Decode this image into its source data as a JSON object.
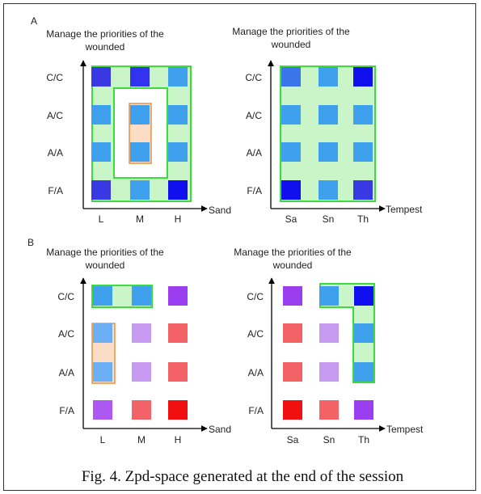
{
  "figure": {
    "caption": "Fig. 4.   Zpd-space generated at the end of the session",
    "section_labels": [
      "A",
      "B"
    ],
    "y_categories": [
      "C/C",
      "A/C",
      "A/A",
      "F/A"
    ],
    "panels": [
      {
        "id": "A-left",
        "title_line1": "Manage the priorities of the",
        "title_line2": "wounded",
        "x_axis_title": "Sand",
        "x_categories": [
          "L",
          "M",
          "H"
        ],
        "cells": [
          [
            "#3939e3",
            "#3333ef",
            "#3fa1ee"
          ],
          [
            "#3fa1ee",
            "#3fa1ee",
            "#3fa1ee"
          ],
          [
            "#3fa1ee",
            "#3fa1ee",
            "#3fa1ee"
          ],
          [
            "#3939e3",
            "#3fa1ee",
            "#1010ee"
          ]
        ]
      },
      {
        "id": "A-right",
        "title_line1": "Manage the priorities of the",
        "title_line2": "wounded",
        "x_axis_title": "Tempest",
        "x_categories": [
          "Sa",
          "Sn",
          "Th"
        ],
        "cells": [
          [
            "#3a76ea",
            "#3fa1ee",
            "#1010ee"
          ],
          [
            "#3fa1ee",
            "#3fa1ee",
            "#3fa1ee"
          ],
          [
            "#3fa1ee",
            "#3fa1ee",
            "#3fa1ee"
          ],
          [
            "#1010ee",
            "#3fa1ee",
            "#3939e3"
          ]
        ]
      },
      {
        "id": "B-left",
        "title_line1": "Manage the priorities of the",
        "title_line2": "wounded",
        "x_axis_title": "Sand",
        "x_categories": [
          "L",
          "M",
          "H"
        ],
        "cells": [
          [
            "#3fa1ee",
            "#3fa1ee",
            "#9b3ef0"
          ],
          [
            "#6aaff3",
            "#c79af2",
            "#f26266"
          ],
          [
            "#6aaff3",
            "#c79af2",
            "#f26266"
          ],
          [
            "#ae58f3",
            "#f26266",
            "#f01010"
          ]
        ]
      },
      {
        "id": "B-right",
        "title_line1": "Manage the priorities of the",
        "title_line2": "wounded",
        "x_axis_title": "Tempest",
        "x_categories": [
          "Sa",
          "Sn",
          "Th"
        ],
        "cells": [
          [
            "#9b3ef0",
            "#3fa1ee",
            "#1010ee"
          ],
          [
            "#f26266",
            "#c79af2",
            "#3fa1ee"
          ],
          [
            "#f26266",
            "#c79af2",
            "#3fa1ee"
          ],
          [
            "#f01010",
            "#f26266",
            "#9b3ef0"
          ]
        ]
      }
    ],
    "colors": {
      "zone_fill": "#c9f5c9",
      "zone_stroke": "#3ddc3d",
      "highlight_fill": "#fbdcc4",
      "highlight_stroke": "#e8913e",
      "axis": "#000000"
    }
  }
}
